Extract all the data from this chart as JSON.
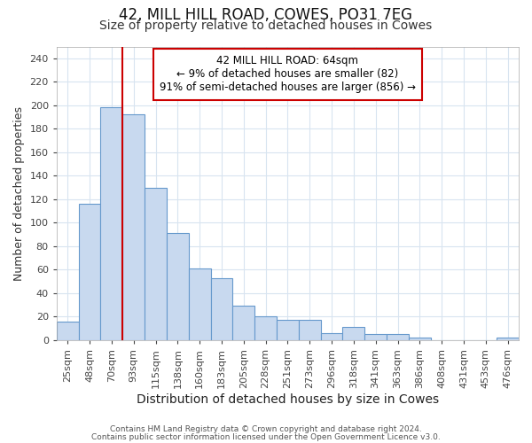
{
  "title1": "42, MILL HILL ROAD, COWES, PO31 7EG",
  "title2": "Size of property relative to detached houses in Cowes",
  "xlabel": "Distribution of detached houses by size in Cowes",
  "ylabel": "Number of detached properties",
  "categories": [
    "25sqm",
    "48sqm",
    "70sqm",
    "93sqm",
    "115sqm",
    "138sqm",
    "160sqm",
    "183sqm",
    "205sqm",
    "228sqm",
    "251sqm",
    "273sqm",
    "296sqm",
    "318sqm",
    "341sqm",
    "363sqm",
    "386sqm",
    "408sqm",
    "431sqm",
    "453sqm",
    "476sqm"
  ],
  "values": [
    16,
    116,
    198,
    192,
    130,
    91,
    61,
    53,
    29,
    20,
    17,
    17,
    6,
    11,
    5,
    5,
    2,
    0,
    0,
    0,
    2
  ],
  "bar_color": "#c8d9ef",
  "bar_edge_color": "#6699cc",
  "red_line_x": 2.5,
  "annotation_line1": "42 MILL HILL ROAD: 64sqm",
  "annotation_line2": "← 9% of detached houses are smaller (82)",
  "annotation_line3": "91% of semi-detached houses are larger (856) →",
  "red_line_color": "#cc0000",
  "annotation_box_edge": "#cc0000",
  "footnote1": "Contains HM Land Registry data © Crown copyright and database right 2024.",
  "footnote2": "Contains public sector information licensed under the Open Government Licence v3.0.",
  "ylim": [
    0,
    250
  ],
  "yticks": [
    0,
    20,
    40,
    60,
    80,
    100,
    120,
    140,
    160,
    180,
    200,
    220,
    240
  ],
  "background_color": "#ffffff",
  "grid_color": "#d8e4f0",
  "title1_fontsize": 12,
  "title2_fontsize": 10,
  "xlabel_fontsize": 10,
  "ylabel_fontsize": 9,
  "tick_fontsize": 8
}
